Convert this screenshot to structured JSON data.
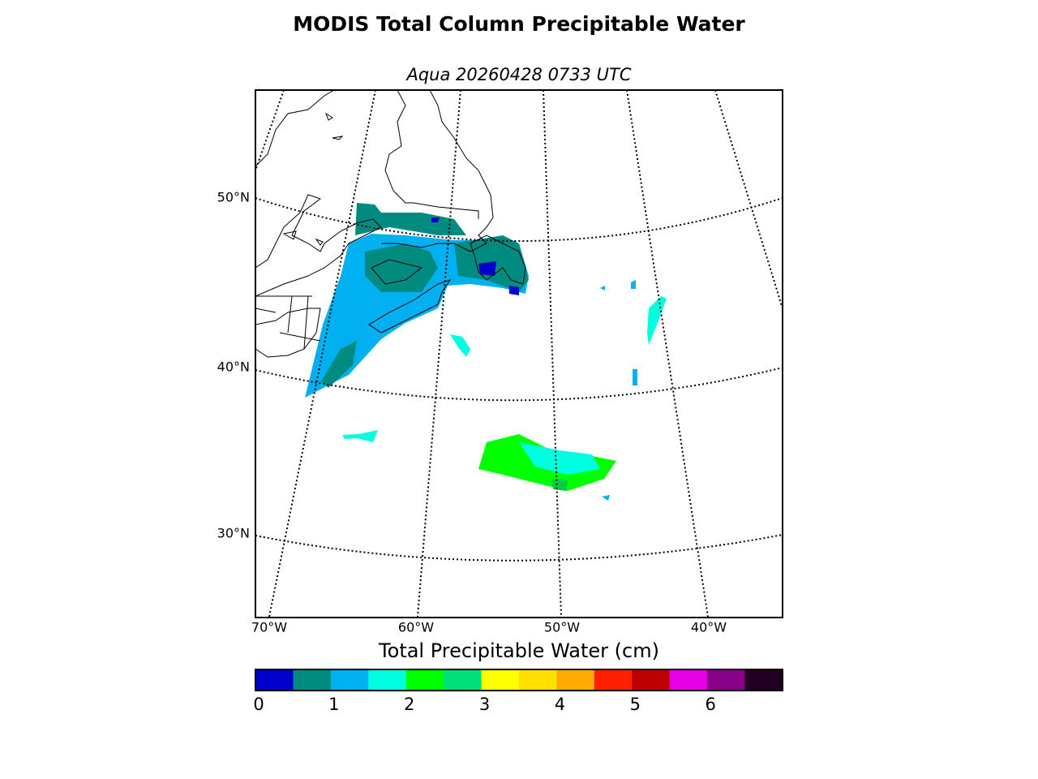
{
  "title": "MODIS Total Column Precipitable Water",
  "subtitle": "Aqua 20260428 0733 UTC",
  "map": {
    "lat_labels": [
      "50°N",
      "40°N",
      "30°N"
    ],
    "lon_labels": [
      "70°W",
      "60°W",
      "50°W",
      "40°W"
    ]
  },
  "colorbar": {
    "label": "Total Precipitable Water (cm)",
    "range": [
      0,
      7
    ],
    "ticks": [
      0,
      1,
      2,
      3,
      4,
      5,
      6
    ],
    "colors": [
      "#0000cd",
      "#008b80",
      "#00b0f0",
      "#00ffe0",
      "#00ff00",
      "#00e07a",
      "#ffff00",
      "#ffe000",
      "#ffaa00",
      "#ff2000",
      "#bb0000",
      "#e600e6",
      "#880088",
      "#220022"
    ]
  }
}
